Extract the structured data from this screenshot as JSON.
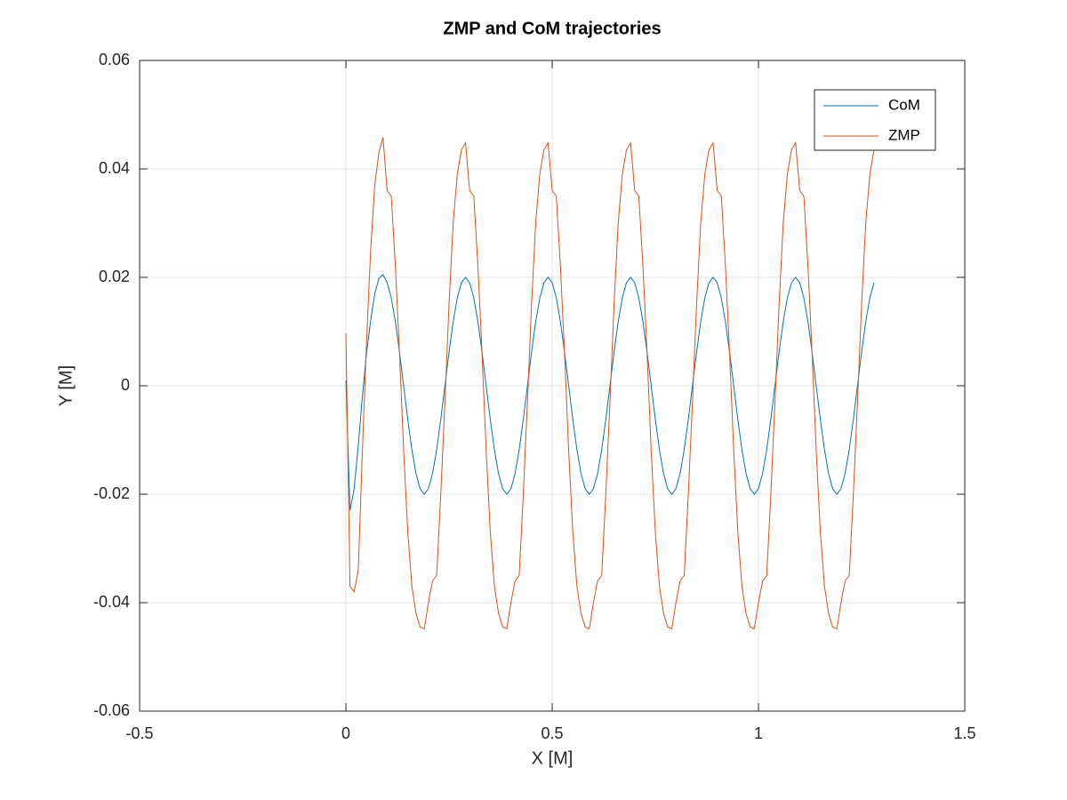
{
  "chart_data": {
    "type": "line",
    "title": "ZMP and CoM trajectories",
    "xlabel": "X [M]",
    "ylabel": "Y [M]",
    "x": [
      0,
      0.01,
      0.02,
      0.03,
      0.04,
      0.05,
      0.06,
      0.07,
      0.08,
      0.09,
      0.1,
      0.11,
      0.12,
      0.13,
      0.14,
      0.15,
      0.16,
      0.17,
      0.18,
      0.19,
      0.2,
      0.21,
      0.22,
      0.23,
      0.24,
      0.25,
      0.26,
      0.27,
      0.28,
      0.29,
      0.3,
      0.31,
      0.32,
      0.33,
      0.34,
      0.35,
      0.36,
      0.37,
      0.38,
      0.39,
      0.4,
      0.41,
      0.42,
      0.43,
      0.44,
      0.45,
      0.46,
      0.47,
      0.48,
      0.49,
      0.5,
      0.51,
      0.52,
      0.53,
      0.54,
      0.55,
      0.56,
      0.57,
      0.58,
      0.59,
      0.6,
      0.61,
      0.62,
      0.63,
      0.64,
      0.65,
      0.66,
      0.67,
      0.68,
      0.69,
      0.7,
      0.71,
      0.72,
      0.73,
      0.74,
      0.75,
      0.76,
      0.77,
      0.78,
      0.79,
      0.8,
      0.81,
      0.82,
      0.83,
      0.84,
      0.85,
      0.86,
      0.87,
      0.88,
      0.89,
      0.9,
      0.91,
      0.92,
      0.93,
      0.94,
      0.95,
      0.96,
      0.97,
      0.98,
      0.99,
      1,
      1.01,
      1.02,
      1.03,
      1.04,
      1.05,
      1.06,
      1.07,
      1.08,
      1.09,
      1.1,
      1.11,
      1.12,
      1.13,
      1.14,
      1.15,
      1.16,
      1.17,
      1.18,
      1.19,
      1.2,
      1.21,
      1.22,
      1.23,
      1.24,
      1.25,
      1.26,
      1.27,
      1.28
    ],
    "series": [
      {
        "name": "CoM",
        "color": "#0072bd",
        "values": [
          0.001,
          -0.023,
          -0.019,
          -0.011,
          -0.002,
          0.006,
          0.012,
          0.017,
          0.0198,
          0.0205,
          0.019,
          0.0162,
          0.0118,
          0.0062,
          0,
          -0.0062,
          -0.0118,
          -0.0162,
          -0.019,
          -0.02,
          -0.019,
          -0.0162,
          -0.0118,
          -0.0062,
          0,
          0.0062,
          0.0118,
          0.0162,
          0.019,
          0.02,
          0.019,
          0.0162,
          0.0118,
          0.0062,
          0,
          -0.0062,
          -0.0118,
          -0.0162,
          -0.019,
          -0.02,
          -0.019,
          -0.0162,
          -0.0118,
          -0.0062,
          0,
          0.0062,
          0.0118,
          0.0162,
          0.019,
          0.02,
          0.019,
          0.0162,
          0.0118,
          0.0062,
          0,
          -0.0062,
          -0.0118,
          -0.0162,
          -0.019,
          -0.02,
          -0.019,
          -0.0162,
          -0.0118,
          -0.0062,
          0,
          0.0062,
          0.0118,
          0.0162,
          0.019,
          0.02,
          0.019,
          0.0162,
          0.0118,
          0.0062,
          0,
          -0.0062,
          -0.0118,
          -0.0162,
          -0.019,
          -0.02,
          -0.019,
          -0.0162,
          -0.0118,
          -0.0062,
          0,
          0.0062,
          0.0118,
          0.0162,
          0.019,
          0.02,
          0.019,
          0.0162,
          0.0118,
          0.0062,
          0,
          -0.0062,
          -0.0118,
          -0.0162,
          -0.019,
          -0.02,
          -0.019,
          -0.0162,
          -0.0118,
          -0.0062,
          0,
          0.0062,
          0.0118,
          0.0162,
          0.019,
          0.02,
          0.019,
          0.0162,
          0.0118,
          0.0062,
          0,
          -0.0062,
          -0.0118,
          -0.0162,
          -0.019,
          -0.02,
          -0.019,
          -0.0162,
          -0.0118,
          -0.0062,
          0,
          0.0062,
          0.0118,
          0.0162,
          0.019
        ]
      },
      {
        "name": "ZMP",
        "color": "#d95319",
        "values": [
          0.0097,
          -0.037,
          -0.038,
          -0.034,
          -0.012,
          0.008,
          0.025,
          0.037,
          0.043,
          0.0458,
          0.036,
          0.035,
          0.022,
          0.006,
          -0.012,
          -0.027,
          -0.037,
          -0.042,
          -0.0445,
          -0.0448,
          -0.04,
          -0.036,
          -0.035,
          -0.02,
          -0.003,
          0.015,
          0.03,
          0.039,
          0.0435,
          0.0448,
          0.036,
          0.035,
          0.022,
          0.006,
          -0.012,
          -0.027,
          -0.037,
          -0.042,
          -0.0445,
          -0.0448,
          -0.04,
          -0.036,
          -0.035,
          -0.02,
          -0.003,
          0.015,
          0.03,
          0.039,
          0.0435,
          0.0448,
          0.036,
          0.035,
          0.022,
          0.006,
          -0.012,
          -0.027,
          -0.037,
          -0.042,
          -0.0445,
          -0.0448,
          -0.04,
          -0.036,
          -0.035,
          -0.02,
          -0.003,
          0.015,
          0.03,
          0.039,
          0.0435,
          0.0448,
          0.036,
          0.035,
          0.022,
          0.006,
          -0.012,
          -0.027,
          -0.037,
          -0.042,
          -0.0445,
          -0.0448,
          -0.04,
          -0.036,
          -0.035,
          -0.02,
          -0.003,
          0.015,
          0.03,
          0.039,
          0.0435,
          0.0448,
          0.036,
          0.035,
          0.022,
          0.006,
          -0.012,
          -0.027,
          -0.037,
          -0.042,
          -0.0445,
          -0.0448,
          -0.04,
          -0.036,
          -0.035,
          -0.02,
          -0.003,
          0.015,
          0.03,
          0.039,
          0.0435,
          0.0448,
          0.036,
          0.035,
          0.022,
          0.006,
          -0.012,
          -0.027,
          -0.037,
          -0.042,
          -0.0445,
          -0.0448,
          -0.04,
          -0.036,
          -0.035,
          -0.02,
          -0.003,
          0.015,
          0.03,
          0.039,
          0.0435
        ]
      }
    ],
    "xlim": [
      -0.5,
      1.5
    ],
    "xticks": [
      -0.5,
      0,
      0.5,
      1,
      1.5
    ],
    "ylim": [
      -0.06,
      0.06
    ],
    "yticks": [
      -0.06,
      -0.04,
      -0.02,
      0,
      0.02,
      0.04,
      0.06
    ],
    "grid": true,
    "legend": "upper right"
  }
}
